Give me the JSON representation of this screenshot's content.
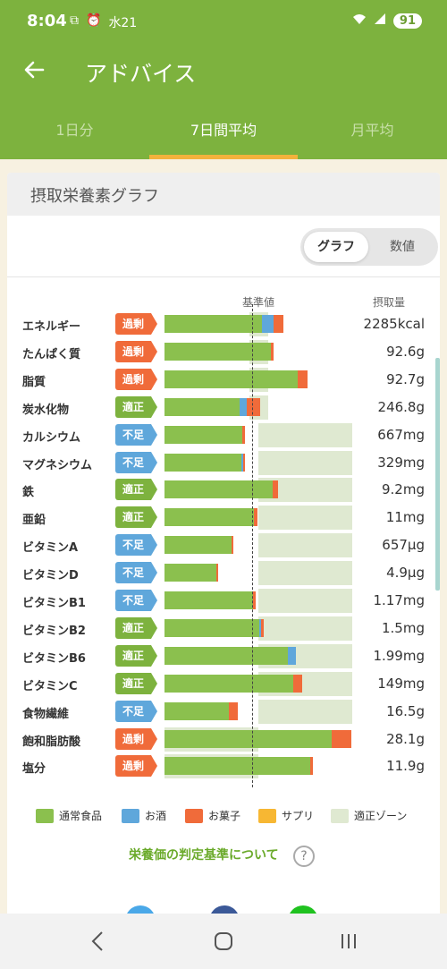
{
  "status": {
    "time": "8:04",
    "icons_left": [
      "screen-record-icon",
      "alarm-icon",
      "weather-icon"
    ],
    "weather": "水21",
    "battery": "91"
  },
  "appbar": {
    "title": "アドバイス"
  },
  "tabs": [
    {
      "label": "1日分",
      "active": false
    },
    {
      "label": "7日間平均",
      "active": true
    },
    {
      "label": "月平均",
      "active": false
    }
  ],
  "card": {
    "title": "摂取栄養素グラフ",
    "toggle": {
      "graph": "グラフ",
      "values": "数値",
      "selected": "graph"
    },
    "header_baseline": "基準値",
    "header_intake": "摂取量"
  },
  "colors": {
    "normal": "#8bc04e",
    "alcohol": "#5fa7db",
    "snack": "#f06b3a",
    "supplement": "#f7b733",
    "zone": "#dfe9d1",
    "over": "#f06b3a",
    "ok": "#7db23e",
    "low": "#5fa7db"
  },
  "chart_data": {
    "type": "bar",
    "baseline_value": 100,
    "unit": "percent_of_baseline",
    "rows": [
      {
        "name": "エネルギー",
        "status": "過剰",
        "level": "over",
        "value": "2285kcal",
        "zone": [
          90,
          110
        ],
        "segments": {
          "normal": 104,
          "alcohol": 12,
          "snack": 11,
          "supplement": 0
        }
      },
      {
        "name": "たんぱく質",
        "status": "過剰",
        "level": "over",
        "value": "92.6g",
        "zone": [
          90,
          110
        ],
        "segments": {
          "normal": 113,
          "alcohol": 0,
          "snack": 3,
          "supplement": 0
        }
      },
      {
        "name": "脂質",
        "status": "過剰",
        "level": "over",
        "value": "92.7g",
        "zone": [
          90,
          110
        ],
        "segments": {
          "normal": 142,
          "alcohol": 0,
          "snack": 10,
          "supplement": 0
        }
      },
      {
        "name": "炭水化物",
        "status": "適正",
        "level": "ok",
        "value": "246.8g",
        "zone": [
          90,
          110
        ],
        "segments": {
          "normal": 80,
          "alcohol": 8,
          "snack": 14,
          "supplement": 0
        }
      },
      {
        "name": "カルシウム",
        "status": "不足",
        "level": "low",
        "value": "667mg",
        "zone": [
          100,
          200
        ],
        "segments": {
          "normal": 83,
          "alcohol": 0,
          "snack": 3,
          "supplement": 0
        }
      },
      {
        "name": "マグネシウム",
        "status": "不足",
        "level": "low",
        "value": "329mg",
        "zone": [
          100,
          200
        ],
        "segments": {
          "normal": 82,
          "alcohol": 2,
          "snack": 2,
          "supplement": 0
        }
      },
      {
        "name": "鉄",
        "status": "適正",
        "level": "ok",
        "value": "9.2mg",
        "zone": [
          100,
          200
        ],
        "segments": {
          "normal": 115,
          "alcohol": 0,
          "snack": 6,
          "supplement": 0
        }
      },
      {
        "name": "亜鉛",
        "status": "適正",
        "level": "ok",
        "value": "11mg",
        "zone": [
          100,
          200
        ],
        "segments": {
          "normal": 95,
          "alcohol": 0,
          "snack": 4,
          "supplement": 0
        }
      },
      {
        "name": "ビタミンA",
        "status": "不足",
        "level": "low",
        "value": "657μg",
        "zone": [
          100,
          200
        ],
        "segments": {
          "normal": 71,
          "alcohol": 0,
          "snack": 2,
          "supplement": 0
        }
      },
      {
        "name": "ビタミンD",
        "status": "不足",
        "level": "low",
        "value": "4.9μg",
        "zone": [
          100,
          200
        ],
        "segments": {
          "normal": 55,
          "alcohol": 0,
          "snack": 2,
          "supplement": 0
        }
      },
      {
        "name": "ビタミンB1",
        "status": "不足",
        "level": "low",
        "value": "1.17mg",
        "zone": [
          100,
          200
        ],
        "segments": {
          "normal": 94,
          "alcohol": 0,
          "snack": 3,
          "supplement": 0
        }
      },
      {
        "name": "ビタミンB2",
        "status": "適正",
        "level": "ok",
        "value": "1.5mg",
        "zone": [
          100,
          200
        ],
        "segments": {
          "normal": 101,
          "alcohol": 2,
          "snack": 3,
          "supplement": 0
        }
      },
      {
        "name": "ビタミンB6",
        "status": "適正",
        "level": "ok",
        "value": "1.99mg",
        "zone": [
          100,
          200
        ],
        "segments": {
          "normal": 131,
          "alcohol": 9,
          "snack": 0,
          "supplement": 0
        }
      },
      {
        "name": "ビタミンC",
        "status": "適正",
        "level": "ok",
        "value": "149mg",
        "zone": [
          100,
          200
        ],
        "segments": {
          "normal": 137,
          "alcohol": 0,
          "snack": 10,
          "supplement": 0
        }
      },
      {
        "name": "食物繊維",
        "status": "不足",
        "level": "low",
        "value": "16.5g",
        "zone": [
          100,
          200
        ],
        "segments": {
          "normal": 69,
          "alcohol": 0,
          "snack": 9,
          "supplement": 0
        }
      },
      {
        "name": "飽和脂肪酸",
        "status": "過剰",
        "level": "over",
        "value": "28.1g",
        "zone": [
          0,
          100
        ],
        "segments": {
          "normal": 178,
          "alcohol": 0,
          "snack": 21,
          "supplement": 0
        }
      },
      {
        "name": "塩分",
        "status": "過剰",
        "level": "over",
        "value": "11.9g",
        "zone": [
          0,
          100
        ],
        "segments": {
          "normal": 155,
          "alcohol": 0,
          "snack": 3,
          "supplement": 0
        }
      }
    ],
    "legend": [
      {
        "key": "normal",
        "label": "通常食品"
      },
      {
        "key": "alcohol",
        "label": "お酒"
      },
      {
        "key": "snack",
        "label": "お菓子"
      },
      {
        "key": "supplement",
        "label": "サプリ"
      },
      {
        "key": "zone",
        "label": "適正ゾーン"
      }
    ]
  },
  "criteria_link": "栄養価の判定基準について",
  "share": [
    "twitter-icon",
    "facebook-icon",
    "line-icon"
  ],
  "navbar": [
    "back-nav-icon",
    "home-nav-icon",
    "recents-nav-icon"
  ]
}
